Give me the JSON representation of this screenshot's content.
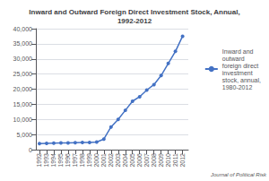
{
  "chart_data": {
    "type": "line",
    "title": "Inward and Outward Foreign Direct Investment Stock, Annual,\n1992-2012",
    "x": [
      1992,
      1993,
      1994,
      1995,
      1996,
      1997,
      1998,
      1999,
      2000,
      2001,
      2002,
      2003,
      2004,
      2005,
      2006,
      2007,
      2008,
      2009,
      2010,
      2011,
      2012
    ],
    "series": [
      {
        "name": "Inward and\noutward\nforeign direct\ninvestment\nstock, annual,\n1980-2012",
        "color": "#4472C4",
        "marker": "circle",
        "values": [
          2000,
          2100,
          2150,
          2200,
          2250,
          2300,
          2350,
          2400,
          2500,
          3500,
          7500,
          10000,
          13000,
          16000,
          17500,
          19700,
          21500,
          24500,
          28500,
          32500,
          37500
        ]
      }
    ],
    "xlim": [
      1991.5,
      2012.8
    ],
    "xticks": [
      1992,
      1993,
      1994,
      1995,
      1996,
      1997,
      1998,
      1999,
      2000,
      2001,
      2002,
      2003,
      2004,
      2005,
      2006,
      2007,
      2008,
      2009,
      2010,
      2011,
      2012
    ],
    "ylim": [
      0,
      40000
    ],
    "yticks": [
      0,
      {
        "value": 5000,
        "label": "5,000"
      },
      {
        "value": 10000,
        "label": "10,000"
      },
      {
        "value": 15000,
        "label": "15,000"
      },
      {
        "value": 20000,
        "label": "20,000"
      },
      {
        "value": 25000,
        "label": "25,000"
      },
      {
        "value": 30000,
        "label": "30,000"
      },
      {
        "value": 35000,
        "label": "35,000"
      },
      {
        "value": 40000,
        "label": "40,000"
      }
    ],
    "grid": true,
    "legend": "right",
    "annotations": [
      "Journal of Political Risk"
    ]
  }
}
